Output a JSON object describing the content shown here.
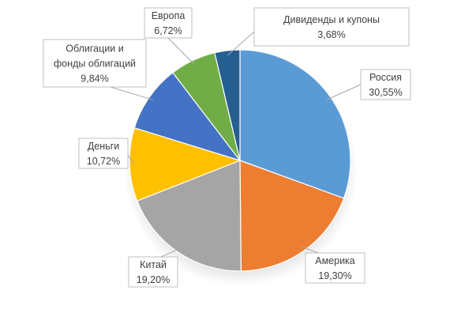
{
  "chart_data": {
    "type": "pie",
    "title": "",
    "legend": "none",
    "slices": [
      {
        "label": "Россия",
        "value": 30.55,
        "display": "30,55%",
        "color": "#5b9bd5"
      },
      {
        "label": "Америка",
        "value": 19.3,
        "display": "19,30%",
        "color": "#ed7d31"
      },
      {
        "label": "Китай",
        "value": 19.2,
        "display": "19,20%",
        "color": "#a5a5a5"
      },
      {
        "label": "Деньги",
        "value": 10.72,
        "display": "10,72%",
        "color": "#ffc000"
      },
      {
        "label": "Облигации и фонды облигаций",
        "label_lines": [
          "Облигации и",
          "фонды облигаций"
        ],
        "value": 9.84,
        "display": "9,84%",
        "color": "#4472c4"
      },
      {
        "label": "Европа",
        "value": 6.72,
        "display": "6,72%",
        "color": "#70ad47"
      },
      {
        "label": "Дивиденды и купоны",
        "value": 3.68,
        "display": "3,68%",
        "color": "#255e91"
      }
    ]
  }
}
